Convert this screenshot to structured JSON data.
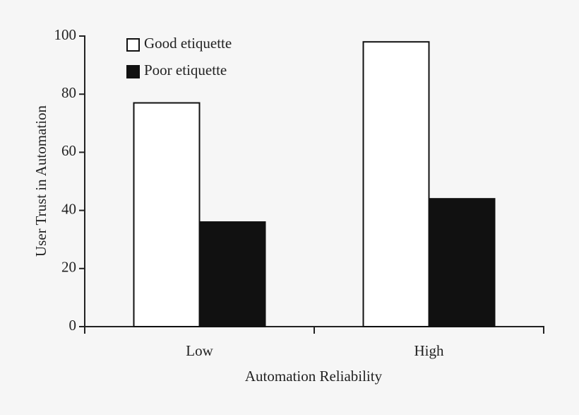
{
  "chart_data": {
    "type": "bar",
    "categories": [
      "Low",
      "High"
    ],
    "series": [
      {
        "name": "Good etiquette",
        "color": "#ffffff",
        "values": [
          77,
          98
        ]
      },
      {
        "name": "Poor etiquette",
        "color": "#111111",
        "values": [
          36,
          44
        ]
      }
    ],
    "x_label": "Automation Reliability",
    "y_label": "User Trust in Automation",
    "ylim": [
      0,
      100
    ],
    "yticks": [
      0,
      20,
      40,
      60,
      80,
      100
    ],
    "legend": "top-left",
    "grid": false
  }
}
